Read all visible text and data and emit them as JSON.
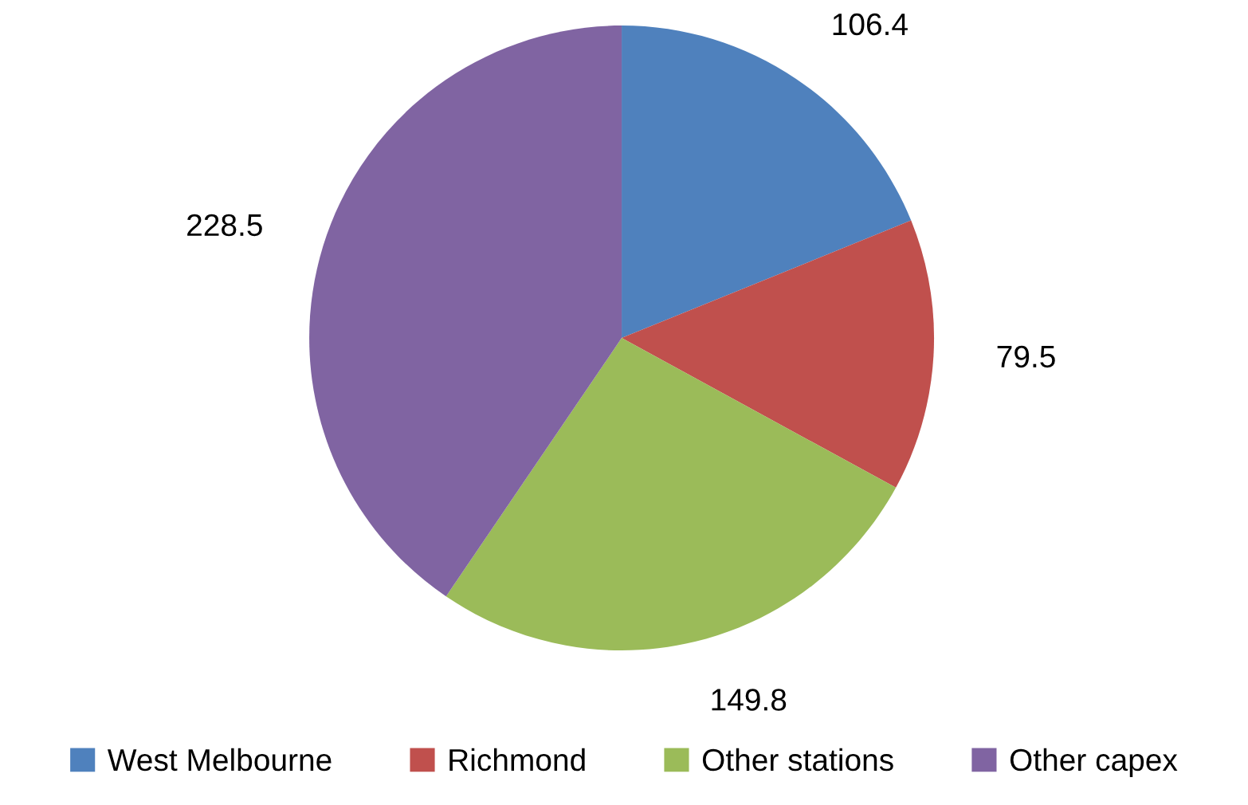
{
  "chart_data": {
    "type": "pie",
    "categories": [
      "West Melbourne",
      "Richmond",
      "Other stations",
      "Other capex"
    ],
    "values": [
      106.4,
      79.5,
      149.8,
      228.5
    ],
    "colors": [
      "#4f81bd",
      "#c0504d",
      "#9bbb59",
      "#8064a2"
    ],
    "data_labels": true,
    "legend": "bottom"
  }
}
